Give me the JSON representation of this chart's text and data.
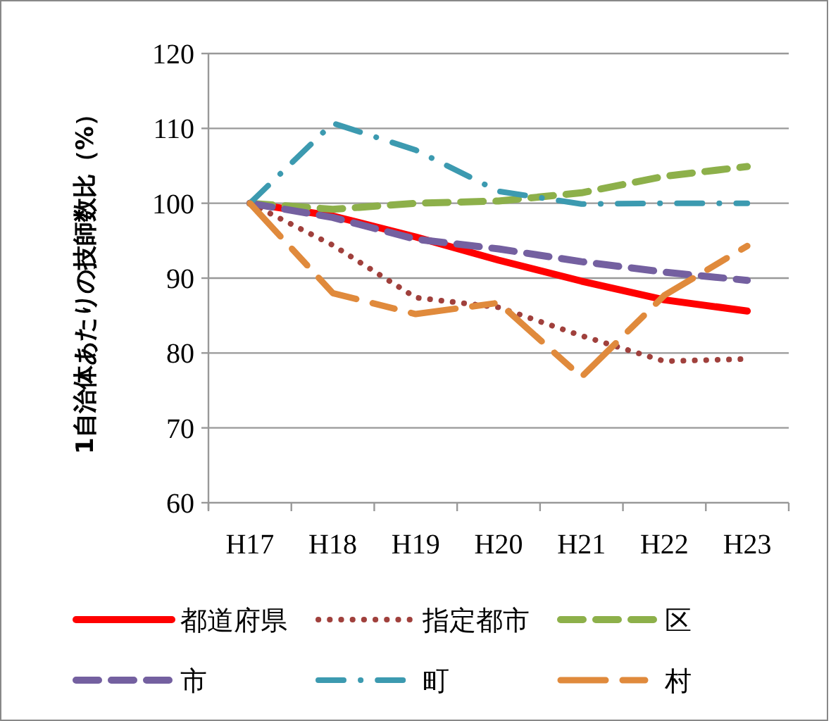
{
  "chart_data": {
    "type": "line",
    "ylabel": "1自治体あたりの技師数比（%）",
    "categories": [
      "H17",
      "H18",
      "H19",
      "H20",
      "H21",
      "H22",
      "H23"
    ],
    "ylim": [
      60,
      120
    ],
    "yticks": [
      60,
      70,
      80,
      90,
      100,
      110,
      120
    ],
    "grid": "y",
    "legend": "bottom",
    "series": [
      {
        "name": "都道府県",
        "color": "#ff0000",
        "line_style": "solid",
        "values": [
          100,
          98.3,
          95.5,
          92.4,
          89.6,
          87.1,
          85.6
        ]
      },
      {
        "name": "指定都市",
        "color": "#a0403c",
        "line_style": "dotted",
        "values": [
          100,
          94.4,
          87.4,
          86.1,
          82.3,
          78.9,
          79.2
        ]
      },
      {
        "name": "区",
        "color": "#8db04a",
        "line_style": "dashed",
        "values": [
          100,
          99.2,
          100,
          100.3,
          101.4,
          103.6,
          104.9
        ]
      },
      {
        "name": "市",
        "color": "#7460a0",
        "line_style": "dashed",
        "values": [
          100,
          98.1,
          95.2,
          93.9,
          92.2,
          90.8,
          89.7
        ]
      },
      {
        "name": "町",
        "color": "#3c9ab0",
        "line_style": "dashdot",
        "values": [
          100,
          110.7,
          107.1,
          101.6,
          99.9,
          100,
          100
        ]
      },
      {
        "name": "村",
        "color": "#e08a3c",
        "line_style": "longdash",
        "values": [
          100,
          88.0,
          85.2,
          86.7,
          76.8,
          87.7,
          94.3
        ]
      }
    ]
  }
}
